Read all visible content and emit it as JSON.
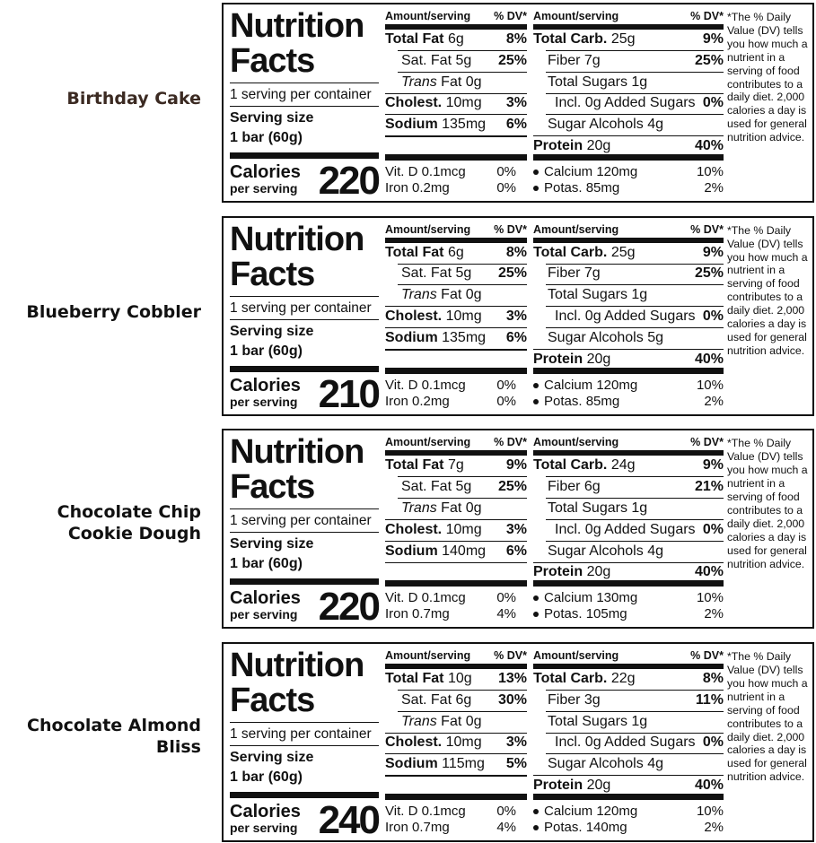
{
  "labels": [
    {
      "product": "Birthday Cake",
      "title": [
        "Nutrition",
        "Facts"
      ],
      "servings": "1 serving per container",
      "serving_size": [
        "Serving size",
        "1 bar (60g)"
      ],
      "calories_label": [
        "Calories",
        "per serving"
      ],
      "calories": "220",
      "headers": [
        "Amount/serving",
        "% DV*",
        "Amount/serving",
        "% DV*"
      ],
      "left": [
        {
          "label": "Total Fat",
          "amount": "6g",
          "dv": "8%"
        },
        {
          "label": "Sat. Fat",
          "amount": "5g",
          "dv": "25%"
        },
        {
          "label": "Trans",
          "amount": "Fat 0g"
        },
        {
          "label": "Cholest.",
          "amount": "10mg",
          "dv": "3%"
        },
        {
          "label": "Sodium",
          "amount": "135mg",
          "dv": "6%"
        }
      ],
      "right": [
        {
          "label": "Total Carb.",
          "amount": "25g",
          "dv": "9%"
        },
        {
          "label": "Fiber",
          "amount": "7g",
          "dv": "25%"
        },
        {
          "label": "Total Sugars",
          "amount": "1g"
        },
        {
          "label": "Incl. 0g Added Sugars",
          "dv": "0%"
        },
        {
          "label": "Sugar Alcohols",
          "amount": "4g"
        },
        {
          "label": "Protein",
          "amount": "20g",
          "dv": "40%"
        }
      ],
      "vitamins": [
        {
          "label": "Vit. D 0.1mcg",
          "dv": "0%"
        },
        {
          "label": "Iron 0.2mg",
          "dv": "0%"
        },
        {
          "label": "Calcium 120mg",
          "dv": "10%"
        },
        {
          "label": "Potas. 85mg",
          "dv": "2%"
        }
      ],
      "footnote": "*The % Daily Value (DV) tells you how much a nutrient in a serving of food contributes to a daily diet. 2,000 calories a day is used for general nutrition advice."
    },
    {
      "product": "Blueberry Cobbler",
      "title": [
        "Nutrition",
        "Facts"
      ],
      "servings": "1 serving per container",
      "serving_size": [
        "Serving size",
        "1 bar (60g)"
      ],
      "calories_label": [
        "Calories",
        "per serving"
      ],
      "calories": "210",
      "headers": [
        "Amount/serving",
        "% DV*",
        "Amount/serving",
        "% DV*"
      ],
      "left": [
        {
          "label": "Total Fat",
          "amount": "6g",
          "dv": "8%"
        },
        {
          "label": "Sat. Fat",
          "amount": "5g",
          "dv": "25%"
        },
        {
          "label": "Trans",
          "amount": "Fat 0g"
        },
        {
          "label": "Cholest.",
          "amount": "10mg",
          "dv": "3%"
        },
        {
          "label": "Sodium",
          "amount": "135mg",
          "dv": "6%"
        }
      ],
      "right": [
        {
          "label": "Total Carb.",
          "amount": "25g",
          "dv": "9%"
        },
        {
          "label": "Fiber",
          "amount": "7g",
          "dv": "25%"
        },
        {
          "label": "Total Sugars",
          "amount": "1g"
        },
        {
          "label": "Incl. 0g Added Sugars",
          "dv": "0%"
        },
        {
          "label": "Sugar Alcohols",
          "amount": "5g"
        },
        {
          "label": "Protein",
          "amount": "20g",
          "dv": "40%"
        }
      ],
      "vitamins": [
        {
          "label": "Vit. D 0.1mcg",
          "dv": "0%"
        },
        {
          "label": "Iron 0.2mg",
          "dv": "0%"
        },
        {
          "label": "Calcium 120mg",
          "dv": "10%"
        },
        {
          "label": "Potas. 85mg",
          "dv": "2%"
        }
      ],
      "footnote": "*The % Daily Value (DV) tells you how much a nutrient in a serving of food contributes to a daily diet. 2,000 calories a day is used for general nutrition advice."
    },
    {
      "product": "Chocolate Chip Cookie Dough",
      "title": [
        "Nutrition",
        "Facts"
      ],
      "servings": "1 serving per container",
      "serving_size": [
        "Serving size",
        "1 bar (60g)"
      ],
      "calories_label": [
        "Calories",
        "per serving"
      ],
      "calories": "220",
      "headers": [
        "Amount/serving",
        "% DV*",
        "Amount/serving",
        "% DV*"
      ],
      "left": [
        {
          "label": "Total Fat",
          "amount": "7g",
          "dv": "9%"
        },
        {
          "label": "Sat. Fat",
          "amount": "5g",
          "dv": "25%"
        },
        {
          "label": "Trans",
          "amount": "Fat 0g"
        },
        {
          "label": "Cholest.",
          "amount": "10mg",
          "dv": "3%"
        },
        {
          "label": "Sodium",
          "amount": "140mg",
          "dv": "6%"
        }
      ],
      "right": [
        {
          "label": "Total Carb.",
          "amount": "24g",
          "dv": "9%"
        },
        {
          "label": "Fiber",
          "amount": "6g",
          "dv": "21%"
        },
        {
          "label": "Total Sugars",
          "amount": "1g"
        },
        {
          "label": "Incl. 0g Added Sugars",
          "dv": "0%"
        },
        {
          "label": "Sugar Alcohols",
          "amount": "4g"
        },
        {
          "label": "Protein",
          "amount": "20g",
          "dv": "40%"
        }
      ],
      "vitamins": [
        {
          "label": "Vit. D 0.1mcg",
          "dv": "0%"
        },
        {
          "label": "Iron 0.7mg",
          "dv": "4%"
        },
        {
          "label": "Calcium 130mg",
          "dv": "10%"
        },
        {
          "label": "Potas. 105mg",
          "dv": "2%"
        }
      ],
      "footnote": "*The % Daily Value (DV) tells you how much a nutrient in a serving of food contributes to a daily diet. 2,000 calories a day is used for general nutrition advice."
    },
    {
      "product": "Chocolate Almond Bliss",
      "title": [
        "Nutrition",
        "Facts"
      ],
      "servings": "1 serving per container",
      "serving_size": [
        "Serving size",
        "1 bar (60g)"
      ],
      "calories_label": [
        "Calories",
        "per serving"
      ],
      "calories": "240",
      "headers": [
        "Amount/serving",
        "% DV*",
        "Amount/serving",
        "% DV*"
      ],
      "left": [
        {
          "label": "Total Fat",
          "amount": "10g",
          "dv": "13%"
        },
        {
          "label": "Sat. Fat",
          "amount": "6g",
          "dv": "30%"
        },
        {
          "label": "Trans",
          "amount": "Fat 0g"
        },
        {
          "label": "Cholest.",
          "amount": "10mg",
          "dv": "3%"
        },
        {
          "label": "Sodium",
          "amount": "115mg",
          "dv": "5%"
        }
      ],
      "right": [
        {
          "label": "Total Carb.",
          "amount": "22g",
          "dv": "8%"
        },
        {
          "label": "Fiber",
          "amount": "3g",
          "dv": "11%"
        },
        {
          "label": "Total Sugars",
          "amount": "1g"
        },
        {
          "label": "Incl. 0g Added Sugars",
          "dv": "0%"
        },
        {
          "label": "Sugar Alcohols",
          "amount": "4g"
        },
        {
          "label": "Protein",
          "amount": "20g",
          "dv": "40%"
        }
      ],
      "vitamins": [
        {
          "label": "Vit. D 0.1mcg",
          "dv": "0%"
        },
        {
          "label": "Iron 0.7mg",
          "dv": "4%"
        },
        {
          "label": "Calcium 120mg",
          "dv": "10%"
        },
        {
          "label": "Potas. 140mg",
          "dv": "2%"
        }
      ],
      "footnote": "*The % Daily Value (DV) tells you how much a nutrient in a serving of food contributes to a daily diet. 2,000 calories a day is used for general nutrition advice."
    }
  ]
}
